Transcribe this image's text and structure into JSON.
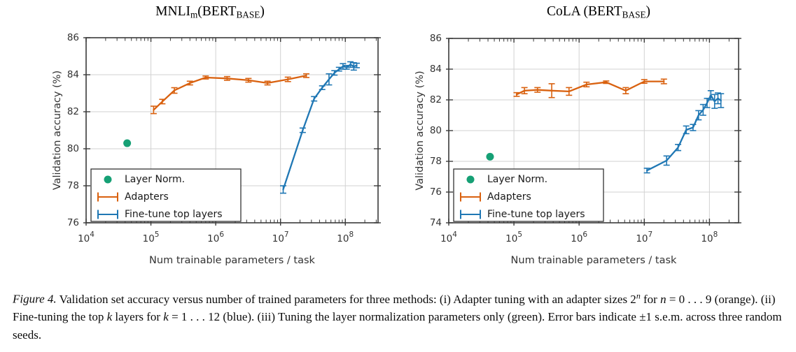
{
  "figure": {
    "titles": {
      "mnli_segments": [
        {
          "t": "MNLI"
        },
        {
          "t": "m",
          "style": "sub"
        },
        {
          "t": "(BERT"
        },
        {
          "t": "BASE",
          "style": "sub"
        },
        {
          "t": ")"
        }
      ],
      "cola_segments": [
        {
          "t": "CoLA (BERT"
        },
        {
          "t": "BASE",
          "style": "sub"
        },
        {
          "t": ")"
        }
      ]
    }
  },
  "caption": {
    "label": "Figure 4.",
    "segments": [
      {
        "t": "Validation set accuracy versus number of trained parameters for three methods: (i) Adapter tuning with an adapter sizes 2"
      },
      {
        "t": "n",
        "style": "sup"
      },
      {
        "t": " for "
      },
      {
        "t": "n",
        "style": "i"
      },
      {
        "t": " = 0 . . . 9 (orange). (ii) Fine-tuning the top "
      },
      {
        "t": "k",
        "style": "i"
      },
      {
        "t": " layers for "
      },
      {
        "t": "k",
        "style": "i"
      },
      {
        "t": " = 1 . . . 12 (blue). (iii) Tuning the layer normalization parameters only (green). Error bars indicate ±1 s.e.m. across three random seeds."
      }
    ]
  },
  "chart_data": [
    {
      "id": "mnli",
      "type": "line",
      "title": "MNLI_m (BERT_BASE)",
      "xlabel": "Num trainable parameters / task",
      "ylabel": "Validation accuracy (%)",
      "xscale": "log",
      "xlim": [
        10000,
        320000000
      ],
      "ylim": [
        76,
        86
      ],
      "yticks": [
        76,
        78,
        80,
        82,
        84,
        86
      ],
      "xticks": [
        {
          "v": 10000,
          "e": "4"
        },
        {
          "v": 100000,
          "e": "5"
        },
        {
          "v": 1000000,
          "e": "6"
        },
        {
          "v": 10000000,
          "e": "7"
        },
        {
          "v": 100000000,
          "e": "8"
        }
      ],
      "grid": true,
      "legend_position": "lower left",
      "series": [
        {
          "name": "Layer Norm.",
          "type": "scatter",
          "color": "#16a075",
          "x": [
            43000
          ],
          "y": [
            80.3
          ]
        },
        {
          "name": "Adapters",
          "type": "errorbar-line",
          "color": "#d9610f",
          "x": [
            110000,
            150000,
            230000,
            400000,
            700000,
            1500000,
            3200000,
            6300000,
            13000000,
            25000000
          ],
          "y": [
            82.1,
            82.55,
            83.15,
            83.55,
            83.85,
            83.8,
            83.7,
            83.55,
            83.75,
            83.95
          ],
          "yerr": [
            0.2,
            0.12,
            0.15,
            0.1,
            0.08,
            0.1,
            0.1,
            0.1,
            0.12,
            0.1
          ]
        },
        {
          "name": "Fine-tune top layers",
          "type": "errorbar-line",
          "color": "#1f77b4",
          "x": [
            11000000,
            22000000,
            33000000,
            44000000,
            56000000,
            68000000,
            80000000,
            92000000,
            105000000,
            120000000,
            135000000,
            150000000
          ],
          "y": [
            77.8,
            81.0,
            82.7,
            83.3,
            83.75,
            84.1,
            84.3,
            84.45,
            84.4,
            84.55,
            84.45,
            84.5
          ],
          "yerr": [
            0.2,
            0.12,
            0.12,
            0.1,
            0.3,
            0.12,
            0.1,
            0.15,
            0.1,
            0.15,
            0.2,
            0.12
          ]
        }
      ]
    },
    {
      "id": "cola",
      "type": "line",
      "title": "CoLA (BERT_BASE)",
      "xlabel": "Num trainable parameters / task",
      "ylabel": "Validation accuracy (%)",
      "xscale": "log",
      "xlim": [
        10000,
        280000000
      ],
      "ylim": [
        74,
        86
      ],
      "yticks": [
        74,
        76,
        78,
        80,
        82,
        84,
        86
      ],
      "xticks": [
        {
          "v": 10000,
          "e": "4"
        },
        {
          "v": 100000,
          "e": "5"
        },
        {
          "v": 1000000,
          "e": "6"
        },
        {
          "v": 10000000,
          "e": "7"
        },
        {
          "v": 100000000,
          "e": "8"
        }
      ],
      "grid": true,
      "legend_position": "lower left",
      "series": [
        {
          "name": "Layer Norm.",
          "type": "scatter",
          "color": "#16a075",
          "x": [
            43000
          ],
          "y": [
            78.3
          ]
        },
        {
          "name": "Adapters",
          "type": "errorbar-line",
          "color": "#d9610f",
          "x": [
            110000,
            145000,
            230000,
            380000,
            700000,
            1300000,
            2600000,
            5200000,
            10000000,
            20000000
          ],
          "y": [
            82.35,
            82.6,
            82.65,
            82.6,
            82.55,
            83.0,
            83.15,
            82.6,
            83.2,
            83.2
          ],
          "yerr": [
            0.12,
            0.2,
            0.15,
            0.45,
            0.25,
            0.15,
            0.08,
            0.2,
            0.12,
            0.15
          ]
        },
        {
          "name": "Fine-tune top layers",
          "type": "errorbar-line",
          "color": "#1f77b4",
          "x": [
            11000000,
            22000000,
            33000000,
            44000000,
            56000000,
            68000000,
            80000000,
            92000000,
            105000000,
            120000000,
            135000000,
            150000000
          ],
          "y": [
            77.4,
            78.05,
            78.9,
            80.05,
            80.2,
            81.0,
            81.35,
            81.8,
            82.3,
            81.9,
            82.1,
            81.95
          ],
          "yerr": [
            0.15,
            0.3,
            0.2,
            0.25,
            0.2,
            0.3,
            0.35,
            0.3,
            0.3,
            0.45,
            0.35,
            0.45
          ]
        }
      ]
    }
  ]
}
